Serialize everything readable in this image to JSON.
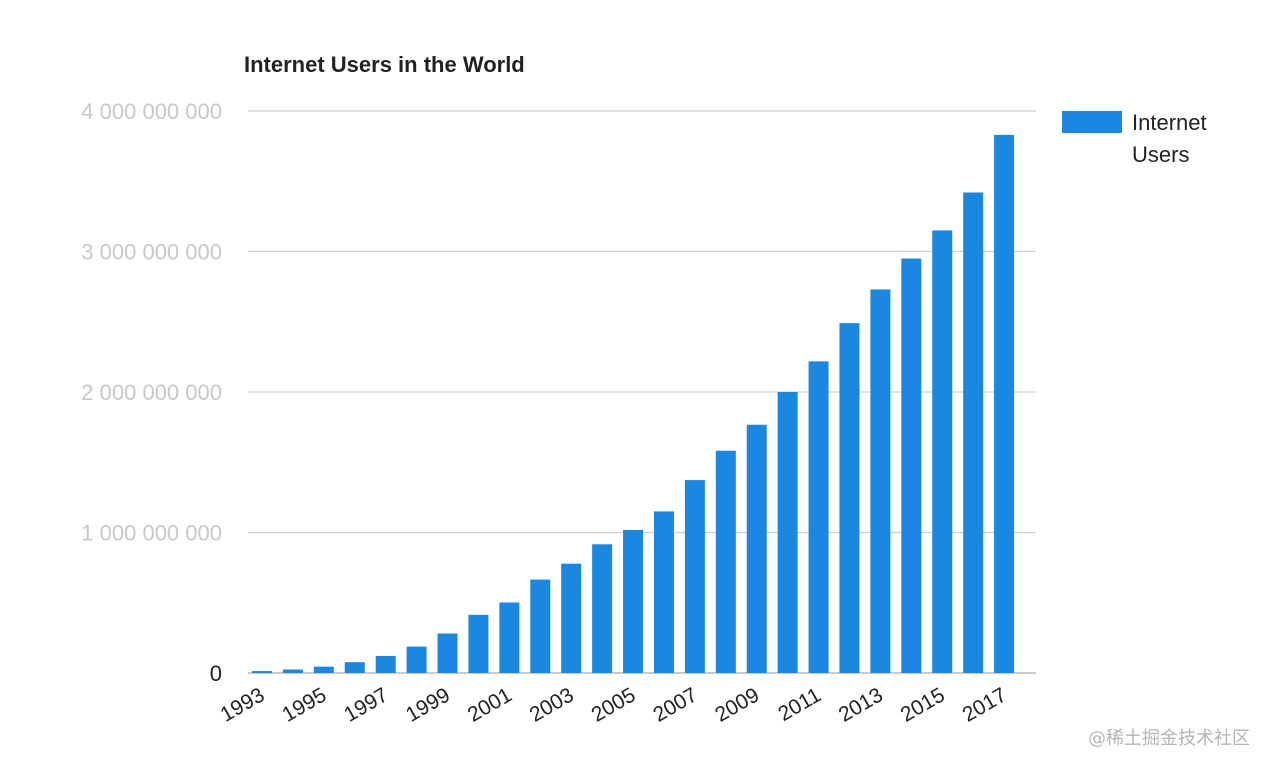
{
  "watermark": "@稀土掘金技术社区",
  "chart_data": {
    "type": "bar",
    "title": "Internet Users in the World",
    "xlabel": "",
    "ylabel": "",
    "ylim": [
      0,
      4000000000
    ],
    "yticks": [
      0,
      1000000000,
      2000000000,
      3000000000,
      4000000000
    ],
    "ytick_labels": [
      "0",
      "1 000 000 000",
      "2 000 000 000",
      "3 000 000 000",
      "4 000 000 000"
    ],
    "xtick_labels": [
      "1993",
      "1995",
      "1997",
      "1999",
      "2001",
      "2003",
      "2005",
      "2007",
      "2009",
      "2011",
      "2013",
      "2015",
      "2017"
    ],
    "categories": [
      "1993",
      "1994",
      "1995",
      "1996",
      "1997",
      "1998",
      "1999",
      "2000",
      "2001",
      "2002",
      "2003",
      "2004",
      "2005",
      "2006",
      "2007",
      "2008",
      "2009",
      "2010",
      "2011",
      "2012",
      "2013",
      "2014",
      "2015",
      "2016",
      "2017"
    ],
    "series": [
      {
        "name": "Internet Users",
        "color": "#1a88e0",
        "values": [
          14000000,
          25000000,
          45000000,
          77000000,
          121000000,
          188000000,
          281000000,
          414000000,
          502000000,
          665000000,
          778000000,
          916000000,
          1018000000,
          1150000000,
          1373000000,
          1582000000,
          1767000000,
          2000000000,
          2218000000,
          2490000000,
          2730000000,
          2950000000,
          3150000000,
          3420000000,
          3830000000
        ]
      }
    ],
    "legend": "right",
    "grid": true
  }
}
